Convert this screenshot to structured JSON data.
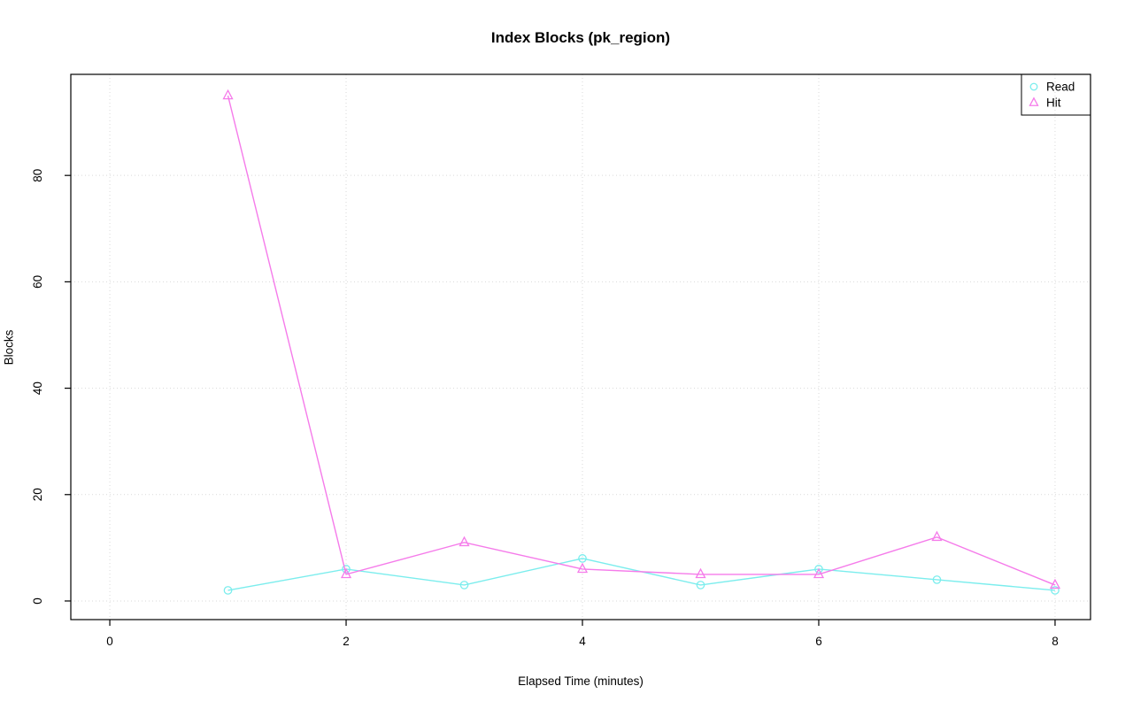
{
  "chart_data": {
    "type": "line",
    "title": "Index Blocks (pk_region)",
    "xlabel": "Elapsed Time (minutes)",
    "ylabel": "Blocks",
    "x": [
      1,
      2,
      3,
      4,
      5,
      6,
      7,
      8
    ],
    "series": [
      {
        "name": "Read",
        "marker": "circle",
        "color": "#7beded",
        "values": [
          2,
          6,
          3,
          8,
          3,
          6,
          4,
          2
        ]
      },
      {
        "name": "Hit",
        "marker": "triangle",
        "color": "#f57bea",
        "values": [
          95,
          5,
          11,
          6,
          5,
          5,
          12,
          3
        ]
      }
    ],
    "xticks": [
      0,
      2,
      4,
      6,
      8
    ],
    "yticks": [
      0,
      20,
      40,
      60,
      80
    ],
    "xlim": [
      -0.33,
      8.3
    ],
    "ylim": [
      -3.5,
      99
    ],
    "grid": true,
    "grid_color": "#d9d9d9",
    "axis_color": "#000000",
    "legend": {
      "position": "top-right",
      "entries": [
        "Read",
        "Hit"
      ]
    }
  }
}
